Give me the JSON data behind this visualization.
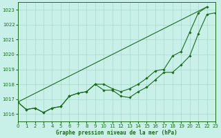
{
  "title": "Graphe pression niveau de la mer (hPa)",
  "bg_color": "#c8f0e8",
  "grid_color": "#a8d8c8",
  "line_color": "#1a6b1a",
  "x_min": 0,
  "x_max": 23,
  "y_min": 1015.5,
  "y_max": 1023.5,
  "y_ticks": [
    1016,
    1017,
    1018,
    1019,
    1020,
    1021,
    1022,
    1023
  ],
  "x_ticks": [
    0,
    1,
    2,
    3,
    4,
    5,
    6,
    7,
    8,
    9,
    10,
    11,
    12,
    13,
    14,
    15,
    16,
    17,
    18,
    19,
    20,
    21,
    22,
    23
  ],
  "series1": [
    1016.8,
    1016.3,
    1016.4,
    1016.1,
    1016.4,
    1016.5,
    1017.2,
    1017.4,
    1017.5,
    1018.0,
    1017.6,
    1017.6,
    1017.2,
    1017.1,
    1017.5,
    1017.8,
    1018.3,
    1018.8,
    1018.8,
    1019.3,
    1019.9,
    1021.4,
    1022.7,
    1022.8
  ],
  "series2": [
    1016.8,
    1016.3,
    1016.4,
    1016.1,
    1016.4,
    1016.5,
    1017.2,
    1017.4,
    1017.5,
    1018.0,
    1018.0,
    1017.7,
    1017.5,
    1017.7,
    1018.0,
    1018.4,
    1018.9,
    1019.0,
    1019.9,
    1020.2,
    1021.5,
    1022.8,
    1023.2,
    null
  ],
  "series3_x": [
    0,
    22
  ],
  "series3_y": [
    1016.8,
    1023.2
  ],
  "title_fontsize": 5.5,
  "tick_fontsize": 5,
  "ylabel_fontsize": 5
}
